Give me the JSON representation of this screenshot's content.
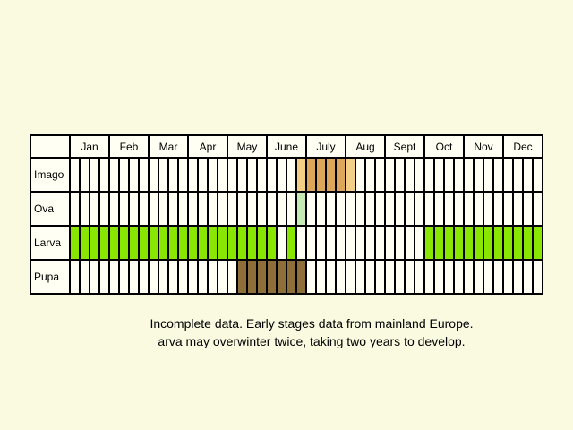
{
  "chart_data": {
    "type": "table",
    "months": [
      "Jan",
      "Feb",
      "Mar",
      "Apr",
      "May",
      "June",
      "July",
      "Aug",
      "Sept",
      "Oct",
      "Nov",
      "Dec"
    ],
    "divisions_per_month": 4,
    "stages": [
      {
        "name": "Imago",
        "color": "#dda75a",
        "periods": [
          [
            24,
            27
          ]
        ],
        "faded_color": "#f3cf86",
        "faded_periods": [
          [
            23,
            23
          ],
          [
            28,
            28
          ]
        ]
      },
      {
        "name": "Ova",
        "color": "#c4ecb2",
        "periods": [
          [
            23,
            23
          ]
        ]
      },
      {
        "name": "Larva",
        "color": "#88e600",
        "periods": [
          [
            0,
            20
          ],
          [
            22,
            22
          ],
          [
            36,
            47
          ]
        ]
      },
      {
        "name": "Pupa",
        "color": "#8e6f3a",
        "periods": [
          [
            17,
            23
          ]
        ]
      }
    ]
  },
  "caption": {
    "line1": "Incomplete data. Early stages data from mainland Europe.",
    "line2": "arva may overwinter twice, taking two years to develop."
  }
}
